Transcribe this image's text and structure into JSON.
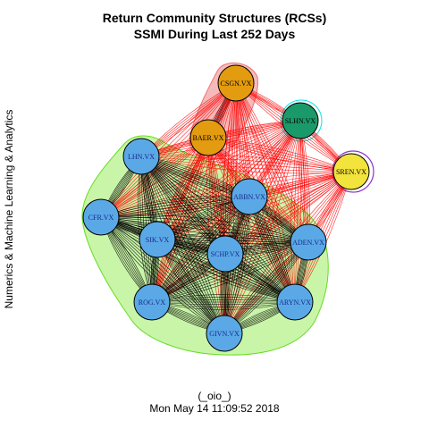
{
  "title_line1": "Return Community Structures (RCSs)",
  "title_line2": "SSMI During Last 252 Days",
  "side_label": "Numerics & Machine Learning & Analytics",
  "footer_line1": "(_oio_)",
  "footer_line2": "Mon May 14 11:09:52 2018",
  "colors": {
    "community_blue": "#5aa9e6",
    "community_orange": "#e39b0f",
    "community_green": "#1a9a6a",
    "community_yellow": "#f2e33d",
    "hull_green": "#c9f5a8",
    "hull_red": "#f6b3b3",
    "edge_between": "#ff0000",
    "edge_within": "#000000"
  },
  "nodes": [
    {
      "id": "CSGN.VX",
      "group": "orange"
    },
    {
      "id": "BAER.VX",
      "group": "orange"
    },
    {
      "id": "SLHN.VX",
      "group": "green"
    },
    {
      "id": "SREN.VX",
      "group": "yellow"
    },
    {
      "id": "LHN.VX",
      "group": "blue"
    },
    {
      "id": "ABBN.VX",
      "group": "blue"
    },
    {
      "id": "CFR.VX",
      "group": "blue"
    },
    {
      "id": "SIK.VX",
      "group": "blue"
    },
    {
      "id": "SCHP.VX",
      "group": "blue"
    },
    {
      "id": "ADEN.VX",
      "group": "blue"
    },
    {
      "id": "ROG.VX",
      "group": "blue"
    },
    {
      "id": "ARYN.VX",
      "group": "blue"
    },
    {
      "id": "GIVN.VX",
      "group": "blue"
    }
  ]
}
